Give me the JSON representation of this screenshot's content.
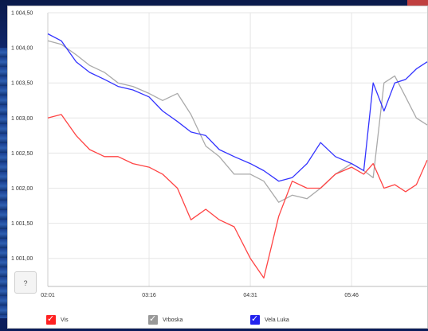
{
  "chart_data": {
    "type": "line",
    "title": "",
    "xlabel": "",
    "ylabel": "",
    "x_ticks": [
      "02:01",
      "03:16",
      "04:31",
      "05:46"
    ],
    "y_ticks": [
      "1 001,00",
      "1 001,50",
      "1 002,00",
      "1 002,50",
      "1 003,00",
      "1 003,50",
      "1 004,00",
      "1 004,50"
    ],
    "ylim": [
      1000.6,
      1004.5
    ],
    "grid": true,
    "legend_position": "bottom",
    "x": [
      "02:01",
      "02:11",
      "02:22",
      "02:32",
      "02:43",
      "02:53",
      "03:04",
      "03:16",
      "03:26",
      "03:37",
      "03:47",
      "03:58",
      "04:08",
      "04:19",
      "04:31",
      "04:41",
      "04:52",
      "05:02",
      "05:13",
      "05:23",
      "05:34",
      "05:46",
      "05:55",
      "06:02",
      "06:10",
      "06:18",
      "06:26",
      "06:34",
      "06:42"
    ],
    "series": [
      {
        "name": "Vis",
        "color": "#ff4444",
        "values": [
          1003.0,
          1003.05,
          1002.75,
          1002.55,
          1002.45,
          1002.45,
          1002.35,
          1002.3,
          1002.2,
          1002.0,
          1001.55,
          1001.7,
          1001.55,
          1001.45,
          1001.0,
          1000.72,
          1001.6,
          1002.1,
          1002.0,
          1002.0,
          1002.2,
          1002.3,
          1002.2,
          1002.35,
          1002.0,
          1002.05,
          1001.95,
          1002.05,
          1002.4
        ]
      },
      {
        "name": "Vrboska",
        "color": "#aaaaaa",
        "values": [
          1004.1,
          1004.05,
          1003.9,
          1003.75,
          1003.65,
          1003.5,
          1003.45,
          1003.35,
          1003.25,
          1003.35,
          1003.05,
          1002.6,
          1002.45,
          1002.2,
          1002.2,
          1002.1,
          1001.8,
          1001.9,
          1001.85,
          1002.0,
          1002.2,
          1002.35,
          1002.25,
          1002.15,
          1003.5,
          1003.6,
          1003.3,
          1003.0,
          1002.9
        ]
      },
      {
        "name": "Vela Luka",
        "color": "#3333ff",
        "values": [
          1004.2,
          1004.1,
          1003.8,
          1003.65,
          1003.55,
          1003.45,
          1003.4,
          1003.3,
          1003.1,
          1002.95,
          1002.8,
          1002.75,
          1002.55,
          1002.45,
          1002.35,
          1002.25,
          1002.1,
          1002.15,
          1002.35,
          1002.65,
          1002.45,
          1002.35,
          1002.25,
          1003.5,
          1003.1,
          1003.5,
          1003.55,
          1003.7,
          1003.8
        ]
      }
    ]
  },
  "help_button": {
    "label": "?"
  },
  "legend": [
    {
      "label": "Vis",
      "color": "#ff2222",
      "checked": true
    },
    {
      "label": "Vrboska",
      "color": "#999999",
      "checked": true
    },
    {
      "label": "Vela Luka",
      "color": "#2222ee",
      "checked": true
    }
  ]
}
